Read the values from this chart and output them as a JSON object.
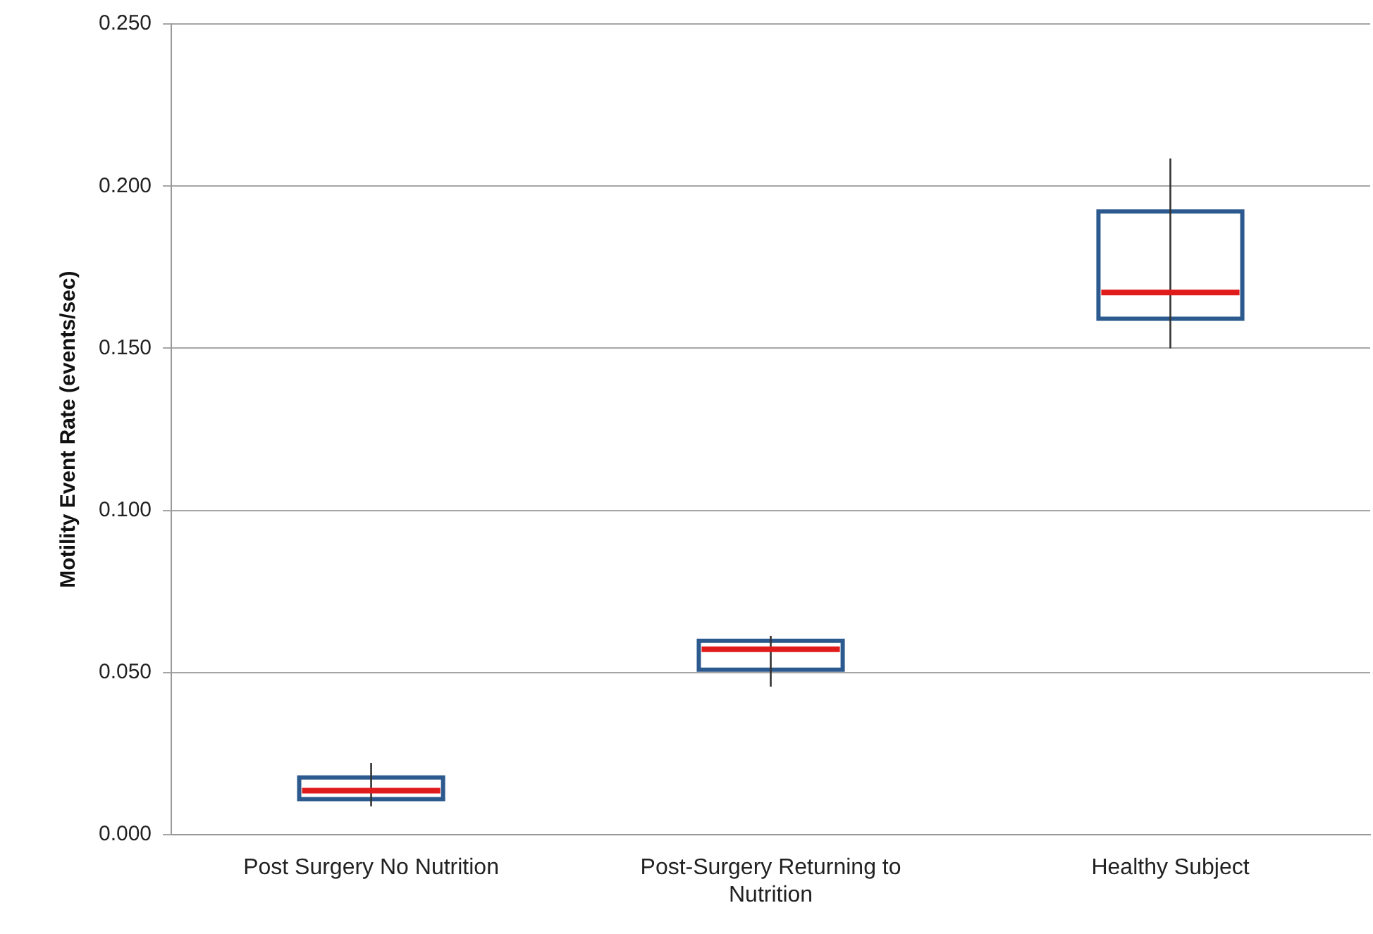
{
  "chart_data": {
    "type": "box",
    "ylabel": "Motility Event Rate (events/sec)",
    "categories": [
      "Post Surgery No Nutrition",
      "Post-Surgery Returning to Nutrition",
      "Healthy Subject"
    ],
    "color": "#2c5a8e",
    "boxes": [
      {
        "low": 0.0088,
        "q1": 0.011,
        "median": 0.0136,
        "q3": 0.0177,
        "high": 0.0222
      },
      {
        "low": 0.0457,
        "q1": 0.0509,
        "median": 0.0572,
        "q3": 0.0598,
        "high": 0.0613
      },
      {
        "low": 0.15,
        "q1": 0.1591,
        "median": 0.1672,
        "q3": 0.1922,
        "high": 0.2085
      }
    ],
    "ylim": [
      0,
      0.25
    ],
    "yticks": [
      {
        "value": 0,
        "label": "0.000"
      },
      {
        "value": 0.05,
        "label": "0.050"
      },
      {
        "value": 0.1,
        "label": "0.100"
      },
      {
        "value": 0.15,
        "label": "0.150"
      },
      {
        "value": 0.2,
        "label": "0.200"
      },
      {
        "value": 0.25,
        "label": "0.250"
      }
    ],
    "grid": "y"
  }
}
